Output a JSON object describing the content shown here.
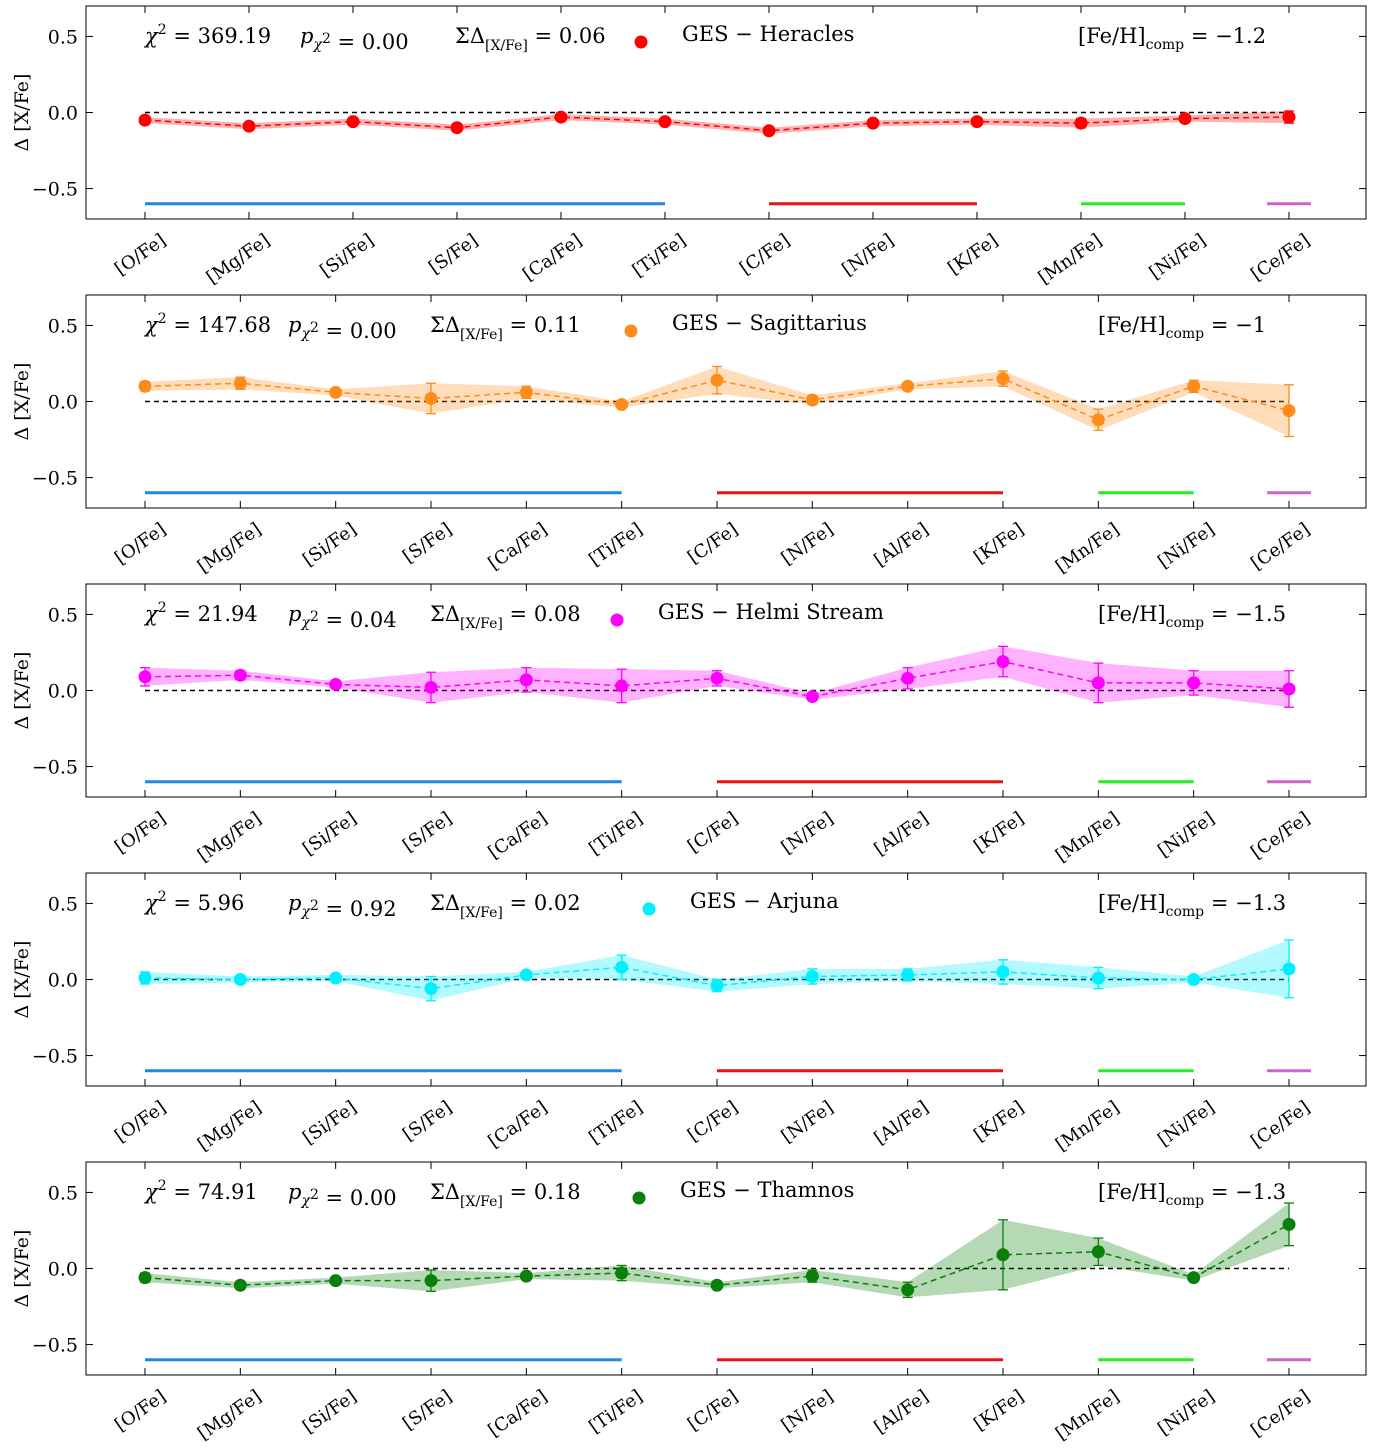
{
  "chart_data": [
    {
      "type": "line",
      "ylabel": "Δ [X/Fe]",
      "ylim": [
        -0.7,
        0.7
      ],
      "yticks": [
        0.5,
        0.0,
        -0.5
      ],
      "ytick_labels": [
        "0.5",
        "0.0",
        "−0.5"
      ],
      "color": "#ff0000",
      "categories": [
        "[O/Fe]",
        "[Mg/Fe]",
        "[Si/Fe]",
        "[S/Fe]",
        "[Ca/Fe]",
        "[Ti/Fe]",
        "[C/Fe]",
        "[N/Fe]",
        "[K/Fe]",
        "[Mn/Fe]",
        "[Ni/Fe]",
        "[Ce/Fe]"
      ],
      "series": [
        {
          "name": "GES − Heracles",
          "values": [
            -0.05,
            -0.09,
            -0.06,
            -0.1,
            -0.03,
            -0.06,
            -0.12,
            -0.07,
            -0.06,
            -0.07,
            -0.04,
            -0.03
          ],
          "errors": [
            0.02,
            0.02,
            0.02,
            0.02,
            0.02,
            0.02,
            0.02,
            0.02,
            0.02,
            0.03,
            0.02,
            0.04
          ]
        }
      ],
      "reference_y": 0.0,
      "group_bars": [
        {
          "from": 0,
          "to": 5,
          "color": "#1e88e5"
        },
        {
          "from": 6,
          "to": 8,
          "color": "#ee1111"
        },
        {
          "from": 9,
          "to": 10,
          "color": "#22ee22"
        },
        {
          "from": 11,
          "to": 11,
          "color": "#cc66cc"
        }
      ],
      "annotations": {
        "chi2": "369.19",
        "p_chi2": "0.00",
        "sum_delta": "0.06",
        "legend": "GES − Heracles",
        "feh_comp": "−1.2"
      }
    },
    {
      "type": "line",
      "ylabel": "Δ [X/Fe]",
      "ylim": [
        -0.7,
        0.7
      ],
      "yticks": [
        0.5,
        0.0,
        -0.5
      ],
      "ytick_labels": [
        "0.5",
        "0.0",
        "−0.5"
      ],
      "color": "#ff8c1a",
      "categories": [
        "[O/Fe]",
        "[Mg/Fe]",
        "[Si/Fe]",
        "[S/Fe]",
        "[Ca/Fe]",
        "[Ti/Fe]",
        "[C/Fe]",
        "[N/Fe]",
        "[Al/Fe]",
        "[K/Fe]",
        "[Mn/Fe]",
        "[Ni/Fe]",
        "[Ce/Fe]"
      ],
      "series": [
        {
          "name": "GES − Sagittarius",
          "values": [
            0.1,
            0.12,
            0.06,
            0.02,
            0.06,
            -0.02,
            0.14,
            0.01,
            0.1,
            0.15,
            -0.12,
            0.1,
            -0.06
          ],
          "errors": [
            0.03,
            0.04,
            0.02,
            0.1,
            0.04,
            0.02,
            0.09,
            0.03,
            0.02,
            0.05,
            0.07,
            0.04,
            0.17
          ]
        }
      ],
      "reference_y": 0.0,
      "group_bars": [
        {
          "from": 0,
          "to": 5,
          "color": "#1e88e5"
        },
        {
          "from": 6,
          "to": 9,
          "color": "#ee1111"
        },
        {
          "from": 10,
          "to": 11,
          "color": "#22ee22"
        },
        {
          "from": 12,
          "to": 12,
          "color": "#cc66cc"
        }
      ],
      "annotations": {
        "chi2": "147.68",
        "p_chi2": "0.00",
        "sum_delta": "0.11",
        "legend": "GES − Sagittarius",
        "feh_comp": "−1"
      }
    },
    {
      "type": "line",
      "ylabel": "Δ [X/Fe]",
      "ylim": [
        -0.7,
        0.7
      ],
      "yticks": [
        0.5,
        0.0,
        -0.5
      ],
      "ytick_labels": [
        "0.5",
        "0.0",
        "−0.5"
      ],
      "color": "#ff00ff",
      "categories": [
        "[O/Fe]",
        "[Mg/Fe]",
        "[Si/Fe]",
        "[S/Fe]",
        "[Ca/Fe]",
        "[Ti/Fe]",
        "[C/Fe]",
        "[N/Fe]",
        "[Al/Fe]",
        "[K/Fe]",
        "[Mn/Fe]",
        "[Ni/Fe]",
        "[Ce/Fe]"
      ],
      "series": [
        {
          "name": "GES − Helmi Stream",
          "values": [
            0.09,
            0.1,
            0.04,
            0.02,
            0.07,
            0.03,
            0.08,
            -0.04,
            0.08,
            0.19,
            0.05,
            0.05,
            0.01
          ],
          "errors": [
            0.06,
            0.03,
            0.02,
            0.1,
            0.08,
            0.11,
            0.05,
            0.02,
            0.07,
            0.1,
            0.13,
            0.08,
            0.12
          ]
        }
      ],
      "reference_y": 0.0,
      "group_bars": [
        {
          "from": 0,
          "to": 5,
          "color": "#1e88e5"
        },
        {
          "from": 6,
          "to": 9,
          "color": "#ee1111"
        },
        {
          "from": 10,
          "to": 11,
          "color": "#22ee22"
        },
        {
          "from": 12,
          "to": 12,
          "color": "#cc66cc"
        }
      ],
      "annotations": {
        "chi2": "21.94",
        "p_chi2": "0.04",
        "sum_delta": "0.08",
        "legend": "GES − Helmi Stream",
        "feh_comp": "−1.5"
      }
    },
    {
      "type": "line",
      "ylabel": "Δ [X/Fe]",
      "ylim": [
        -0.7,
        0.7
      ],
      "yticks": [
        0.5,
        0.0,
        -0.5
      ],
      "ytick_labels": [
        "0.5",
        "0.0",
        "−0.5"
      ],
      "color": "#00f0ff",
      "categories": [
        "[O/Fe]",
        "[Mg/Fe]",
        "[Si/Fe]",
        "[S/Fe]",
        "[Ca/Fe]",
        "[Ti/Fe]",
        "[C/Fe]",
        "[N/Fe]",
        "[Al/Fe]",
        "[K/Fe]",
        "[Mn/Fe]",
        "[Ni/Fe]",
        "[Ce/Fe]"
      ],
      "series": [
        {
          "name": "GES − Arjuna",
          "values": [
            0.01,
            0.0,
            0.01,
            -0.06,
            0.03,
            0.08,
            -0.04,
            0.02,
            0.03,
            0.05,
            0.01,
            0.0,
            0.07
          ],
          "errors": [
            0.04,
            0.02,
            0.02,
            0.08,
            0.02,
            0.08,
            0.04,
            0.05,
            0.04,
            0.08,
            0.07,
            0.02,
            0.19
          ]
        }
      ],
      "reference_y": 0.0,
      "group_bars": [
        {
          "from": 0,
          "to": 5,
          "color": "#1e88e5"
        },
        {
          "from": 6,
          "to": 9,
          "color": "#ee1111"
        },
        {
          "from": 10,
          "to": 11,
          "color": "#22ee22"
        },
        {
          "from": 12,
          "to": 12,
          "color": "#cc66cc"
        }
      ],
      "annotations": {
        "chi2": "5.96",
        "p_chi2": "0.92",
        "sum_delta": "0.02",
        "legend": "GES − Arjuna",
        "feh_comp": "−1.3"
      }
    },
    {
      "type": "line",
      "ylabel": "Δ [X/Fe]",
      "ylim": [
        -0.7,
        0.7
      ],
      "yticks": [
        0.5,
        0.0,
        -0.5
      ],
      "ytick_labels": [
        "0.5",
        "0.0",
        "−0.5"
      ],
      "color": "#0a7f0a",
      "categories": [
        "[O/Fe]",
        "[Mg/Fe]",
        "[Si/Fe]",
        "[S/Fe]",
        "[Ca/Fe]",
        "[Ti/Fe]",
        "[C/Fe]",
        "[N/Fe]",
        "[Al/Fe]",
        "[K/Fe]",
        "[Mn/Fe]",
        "[Ni/Fe]",
        "[Ce/Fe]"
      ],
      "series": [
        {
          "name": "GES − Thamnos",
          "values": [
            -0.06,
            -0.11,
            -0.08,
            -0.08,
            -0.05,
            -0.03,
            -0.11,
            -0.05,
            -0.14,
            0.09,
            0.11,
            -0.06,
            0.29
          ],
          "errors": [
            0.03,
            0.02,
            0.02,
            0.07,
            0.02,
            0.05,
            0.02,
            0.04,
            0.05,
            0.23,
            0.09,
            0.02,
            0.14
          ]
        }
      ],
      "reference_y": 0.0,
      "group_bars": [
        {
          "from": 0,
          "to": 5,
          "color": "#1e88e5"
        },
        {
          "from": 6,
          "to": 9,
          "color": "#ee1111"
        },
        {
          "from": 10,
          "to": 11,
          "color": "#22ee22"
        },
        {
          "from": 12,
          "to": 12,
          "color": "#cc66cc"
        }
      ],
      "annotations": {
        "chi2": "74.91",
        "p_chi2": "0.00",
        "sum_delta": "0.18",
        "legend": "GES − Thamnos",
        "feh_comp": "−1.3"
      }
    }
  ]
}
